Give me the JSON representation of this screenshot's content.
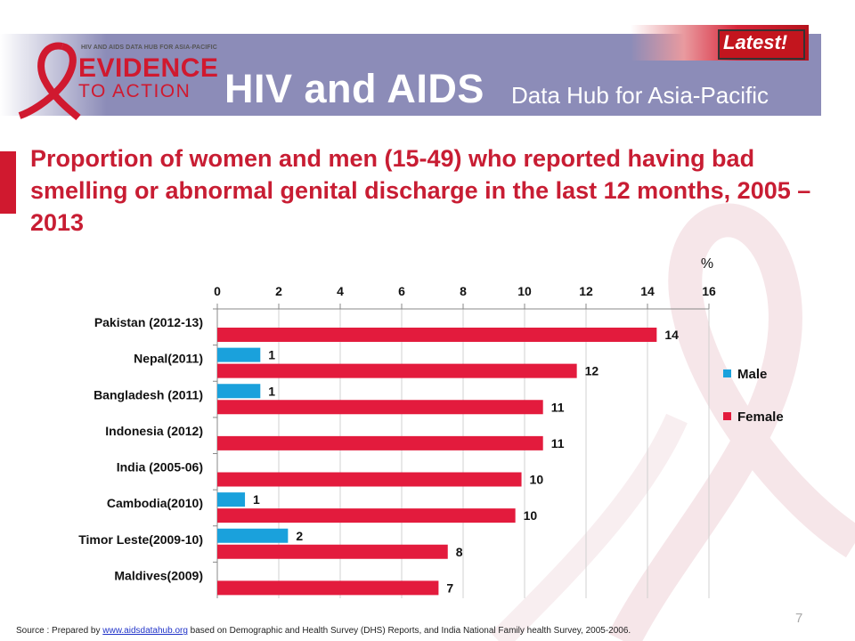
{
  "header": {
    "logo_small": "HIV AND AIDS DATA HUB FOR ASIA-PACIFIC",
    "logo_evidence": "EVIDENCE",
    "logo_action": "TO ACTION",
    "title": "HIV and AIDS",
    "subtitle": "Data Hub for Asia-Pacific",
    "badge": "Latest!"
  },
  "slide": {
    "title": "Proportion of women and men (15-49) who reported having bad smelling or abnormal genital discharge in the last 12 months, 2005 – 2013",
    "page_number": "7"
  },
  "source": {
    "prefix": "Source : Prepared by ",
    "link": "www.aidsdatahub.org",
    "suffix": " based on Demographic and Health Survey (DHS) Reports, and India National Family health Survey, 2005-2006."
  },
  "colors": {
    "male": "#1aa1dc",
    "female": "#e31b3d",
    "title": "#c81d33",
    "header": "#8c8cb8"
  },
  "chart_data": {
    "type": "bar",
    "orientation": "horizontal",
    "unit_label": "%",
    "categories": [
      "Pakistan (2012-13)",
      "Nepal(2011)",
      "Bangladesh (2011)",
      "Indonesia (2012)",
      "India (2005-06)",
      "Cambodia(2010)",
      "Timor Leste(2009-10)",
      "Maldives(2009)"
    ],
    "series": [
      {
        "name": "Male",
        "values": [
          null,
          1.4,
          1.4,
          null,
          null,
          0.9,
          2.3,
          null
        ],
        "labels": [
          "",
          "1",
          "1",
          "",
          "",
          "1",
          "2",
          ""
        ]
      },
      {
        "name": "Female",
        "values": [
          14.3,
          11.7,
          10.6,
          10.6,
          9.9,
          9.7,
          7.5,
          7.2
        ],
        "labels": [
          "14",
          "12",
          "11",
          "11",
          "10",
          "10",
          "8",
          "7"
        ]
      }
    ],
    "x_ticks": [
      "0",
      "2",
      "4",
      "6",
      "8",
      "10",
      "12",
      "14",
      "16"
    ],
    "xlim": [
      0,
      16
    ],
    "grid": true,
    "legend_position": "right"
  }
}
